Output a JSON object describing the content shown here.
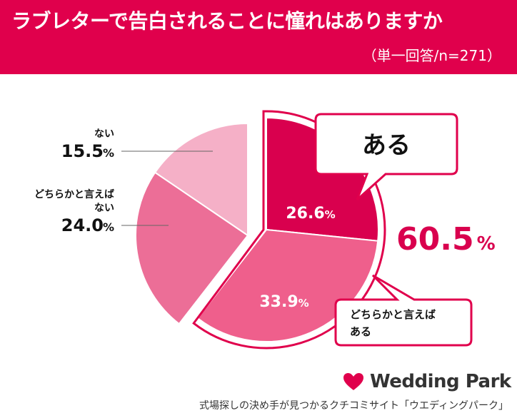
{
  "header": {
    "title": "ラブレターで告白されることに憧れはありますか",
    "note": "（単一回答/n=271）"
  },
  "chart_data": {
    "type": "pie",
    "slices": [
      {
        "label": "ある",
        "value": 26.6,
        "display": "26.6",
        "color": "#d9004e"
      },
      {
        "label": "どちらかと言えばある",
        "value": 33.9,
        "display": "33.9",
        "color": "#ef5f8c"
      },
      {
        "label": "どちらかと言えばない",
        "value": 24.0,
        "display": "24.0",
        "color": "#ec6e97"
      },
      {
        "label": "ない",
        "value": 15.5,
        "display": "15.5",
        "color": "#f5b0c7"
      }
    ],
    "unit": "%",
    "callouts": {
      "aru": "ある",
      "dochiraka_aru_line1": "どちらかと言えば",
      "dochiraka_aru_line2": "ある",
      "nai": "ない",
      "dochiraka_nai_line1": "どちらかと言えば",
      "dochiraka_nai_line2": "ない"
    },
    "combined_total": {
      "value": "60.5",
      "unit": "%",
      "color": "#d9004e"
    }
  },
  "footer": {
    "brand": "Wedding Park",
    "caption": "式場探しの決め手が見つかるクチコミサイト「ウエディングパーク」"
  }
}
